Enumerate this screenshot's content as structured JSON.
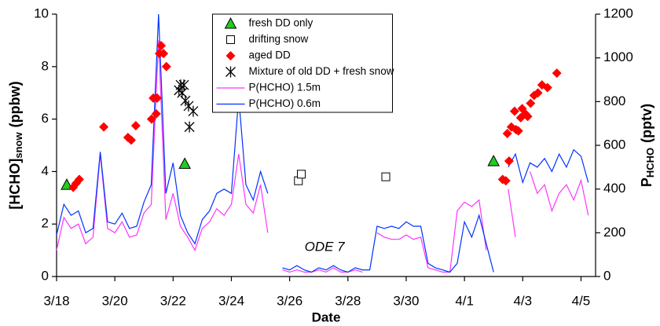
{
  "chart_data": {
    "type": "line-scatter",
    "x_label": "Date",
    "y_label": "[HCHO]",
    "y_label_sub": "snow",
    "y_label_unit": "(ppbw)",
    "y2_label": "P",
    "y2_label_sub": "HCHO",
    "y2_label_unit": "(pptv)",
    "annotation": {
      "text": "ODE 7",
      "x": 9.2,
      "y": 1.1
    },
    "legend": "upper center",
    "xlim": [
      0,
      18.5
    ],
    "xticks": [
      {
        "value": 0,
        "label": "3/18"
      },
      {
        "value": 2,
        "label": "3/20"
      },
      {
        "value": 4,
        "label": "3/22"
      },
      {
        "value": 6,
        "label": "3/24"
      },
      {
        "value": 8,
        "label": "3/26"
      },
      {
        "value": 10,
        "label": "3/28"
      },
      {
        "value": 12,
        "label": "3/30"
      },
      {
        "value": 14,
        "label": "4/1"
      },
      {
        "value": 16,
        "label": "4/3"
      },
      {
        "value": 18,
        "label": "4/5"
      }
    ],
    "ylim": [
      0,
      10
    ],
    "yticks": [
      0,
      2,
      4,
      6,
      8,
      10
    ],
    "y2lim": [
      0,
      1200
    ],
    "y2ticks": [
      0,
      200,
      400,
      600,
      800,
      1000,
      1200
    ],
    "x": [
      0,
      0.25,
      0.5,
      0.75,
      1,
      1.25,
      1.5,
      1.75,
      2,
      2.25,
      2.5,
      2.75,
      3,
      3.25,
      3.5,
      3.75,
      4,
      4.25,
      4.5,
      4.75,
      5,
      5.25,
      5.5,
      5.75,
      6,
      6.25,
      6.5,
      6.75,
      7,
      7.25,
      7.5,
      7.75,
      8,
      8.25,
      8.5,
      8.75,
      9,
      9.25,
      9.5,
      9.75,
      10,
      10.25,
      10.5,
      10.75,
      11,
      11.25,
      11.5,
      11.75,
      12,
      12.25,
      12.5,
      12.75,
      13,
      13.25,
      13.5,
      13.75,
      14,
      14.25,
      14.5,
      14.75,
      15,
      15.25,
      15.5,
      15.75,
      16,
      16.25,
      16.5,
      16.75,
      17,
      17.25,
      17.5,
      17.75,
      18,
      18.25
    ],
    "series": [
      {
        "name": "fresh DD only",
        "marker": "triangle",
        "color": "#22cc22",
        "axis": "y",
        "x": [
          0.35,
          4.4,
          15.0
        ],
        "values": [
          3.5,
          4.3,
          4.4
        ]
      },
      {
        "name": "drifting snow",
        "marker": "square",
        "color": "#ffffff",
        "axis": "y",
        "x": [
          8.3,
          8.4,
          11.3
        ],
        "values": [
          3.65,
          3.9,
          3.8
        ]
      },
      {
        "name": "aged DD",
        "marker": "diamond",
        "color": "#ff0000",
        "axis": "y",
        "x": [
          0.57,
          0.67,
          0.78,
          1.62,
          2.45,
          2.56,
          2.72,
          3.26,
          3.32,
          3.42,
          3.45,
          3.53,
          3.59,
          3.67,
          3.77,
          15.31,
          15.42,
          15.47,
          15.53,
          15.61,
          15.72,
          15.77,
          15.85,
          15.93,
          15.98,
          16.09,
          16.17,
          16.27,
          16.39,
          16.52,
          16.66,
          16.85,
          17.17
        ],
        "values": [
          3.4,
          3.55,
          3.7,
          5.7,
          5.3,
          5.2,
          5.75,
          6.0,
          6.8,
          6.2,
          6.8,
          8.5,
          8.8,
          8.5,
          8.0,
          3.7,
          3.65,
          5.45,
          4.4,
          5.7,
          6.3,
          5.6,
          5.55,
          6.05,
          6.4,
          6.2,
          6.1,
          6.6,
          6.9,
          7.0,
          7.3,
          7.2,
          7.75
        ]
      },
      {
        "name": "Mixture of old DD + fresh snow",
        "marker": "star",
        "color": "#000000",
        "axis": "y",
        "x": [
          4.2,
          4.26,
          4.31,
          4.37,
          4.42,
          4.53,
          4.69,
          4.56
        ],
        "values": [
          7.1,
          7.3,
          7.0,
          7.3,
          6.7,
          6.5,
          6.3,
          5.7
        ]
      },
      {
        "name": "P(HCHO) 1.5m",
        "marker": "line",
        "color": "#ff33ff",
        "axis": "y2",
        "values": [
          120,
          270,
          220,
          240,
          150,
          180,
          560,
          220,
          200,
          250,
          180,
          190,
          290,
          330,
          1080,
          260,
          380,
          230,
          180,
          120,
          220,
          250,
          310,
          280,
          330,
          560,
          330,
          290,
          420,
          200,
          null,
          30,
          20,
          30,
          20,
          20,
          30,
          20,
          40,
          20,
          20,
          30,
          20,
          null,
          200,
          180,
          170,
          170,
          190,
          170,
          180,
          40,
          30,
          20,
          20,
          300,
          340,
          320,
          350,
          120,
          null,
          null,
          400,
          180,
          null,
          480,
          380,
          420,
          300,
          380,
          420,
          350,
          440,
          280
        ]
      },
      {
        "name": "P(HCHO) 0.6m",
        "marker": "line",
        "color": "#0033ff",
        "axis": "y2",
        "values": [
          190,
          330,
          280,
          300,
          200,
          220,
          570,
          250,
          240,
          290,
          220,
          230,
          340,
          420,
          1200,
          380,
          520,
          280,
          200,
          150,
          260,
          300,
          380,
          400,
          380,
          820,
          420,
          350,
          480,
          380,
          null,
          40,
          30,
          50,
          30,
          20,
          40,
          30,
          50,
          30,
          20,
          40,
          30,
          30,
          230,
          220,
          230,
          220,
          250,
          230,
          230,
          60,
          40,
          30,
          20,
          60,
          250,
          180,
          280,
          150,
          20,
          null,
          500,
          560,
          430,
          520,
          500,
          540,
          480,
          560,
          500,
          580,
          550,
          430
        ]
      }
    ]
  }
}
